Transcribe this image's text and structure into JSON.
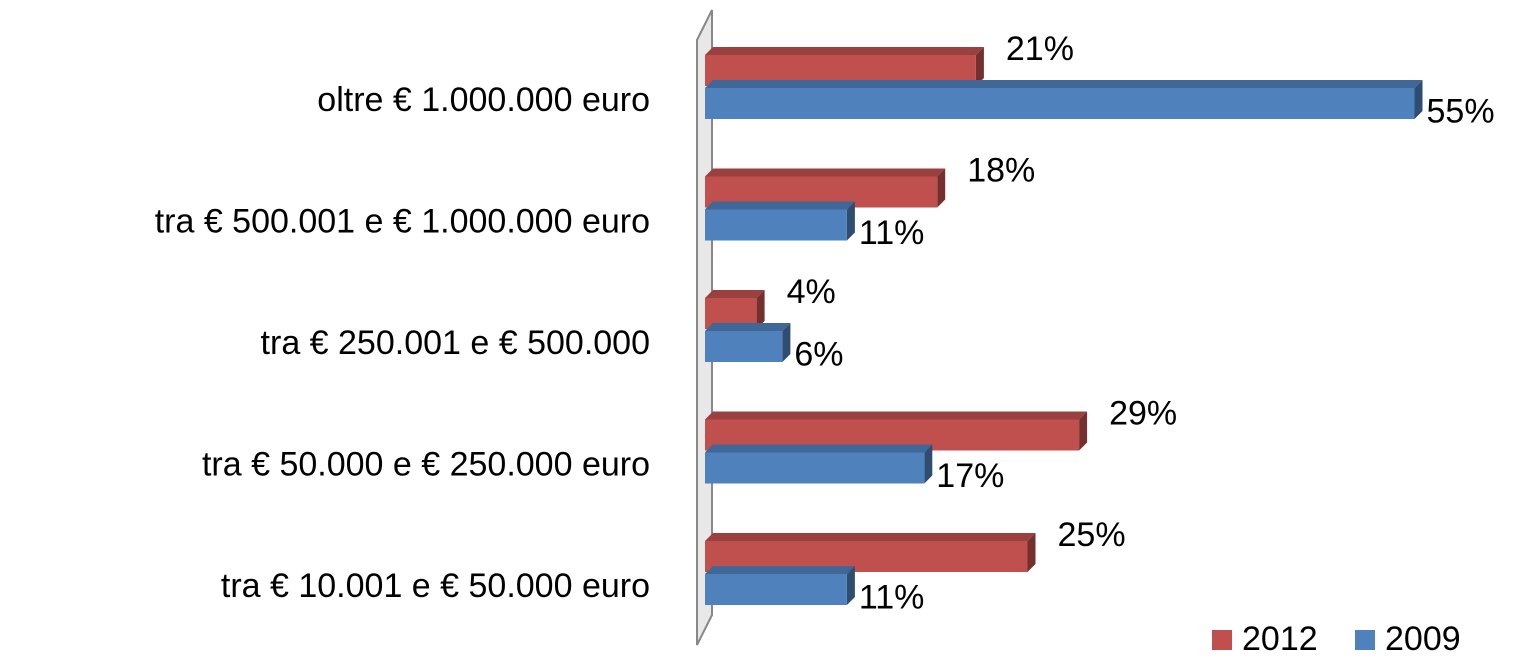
{
  "chart_data": {
    "type": "bar",
    "orientation": "horizontal",
    "categories": [
      "oltre € 1.000.000 euro",
      "tra € 500.001 e € 1.000.000 euro",
      "tra € 250.001 e € 500.000",
      "tra € 50.000 e € 250.000 euro",
      "tra € 10.001 e € 50.000 euro"
    ],
    "series": [
      {
        "name": "2012",
        "color": "#c0504d",
        "values": [
          21,
          18,
          4,
          29,
          25
        ],
        "value_labels": [
          "21%",
          "18%",
          "4%",
          "29%",
          "25%"
        ]
      },
      {
        "name": "2009",
        "color": "#4f81bd",
        "values": [
          55,
          11,
          6,
          17,
          11
        ],
        "value_labels": [
          "55%",
          "11%",
          "6%",
          "17%",
          "11%"
        ]
      }
    ],
    "legend": "bottom-right"
  }
}
